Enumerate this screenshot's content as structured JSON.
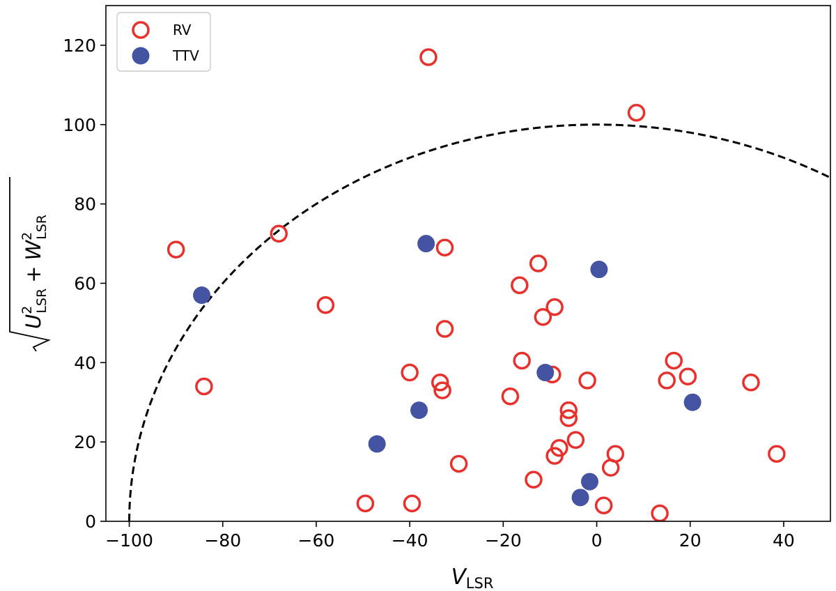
{
  "chart_data": {
    "type": "scatter",
    "xlabel_main": "V",
    "xlabel_sub": "LSR",
    "ylabel": {
      "u": "U",
      "w": "W",
      "exp": "2",
      "sub": "LSR",
      "plus": "+"
    },
    "xlim": [
      -105,
      50
    ],
    "ylim": [
      0,
      130
    ],
    "xticks": [
      -100,
      -80,
      -60,
      -40,
      -20,
      0,
      20,
      40
    ],
    "xtick_labels": [
      "−100",
      "−80",
      "−60",
      "−40",
      "−20",
      "0",
      "20",
      "40"
    ],
    "yticks": [
      0,
      20,
      40,
      60,
      80,
      100,
      120
    ],
    "ytick_labels": [
      "0",
      "20",
      "40",
      "60",
      "80",
      "100",
      "120"
    ],
    "grid": false,
    "legend_position": "top-left",
    "reference_curve": {
      "shape": "circle",
      "center": [
        0,
        0
      ],
      "radius": 100,
      "style": "dashed",
      "color": "#000000"
    },
    "series": [
      {
        "name": "RV",
        "marker": "open-circle",
        "color": "#e8302c",
        "points": [
          [
            -36,
            117
          ],
          [
            8.5,
            103
          ],
          [
            -90,
            68.5
          ],
          [
            -68,
            72.5
          ],
          [
            -32.5,
            69
          ],
          [
            -12.5,
            65
          ],
          [
            -16.5,
            59.5
          ],
          [
            -58,
            54.5
          ],
          [
            -9,
            54
          ],
          [
            -11.5,
            51.5
          ],
          [
            -32.5,
            48.5
          ],
          [
            -16,
            40.5
          ],
          [
            -40,
            37.5
          ],
          [
            -84,
            34
          ],
          [
            -9.5,
            37
          ],
          [
            -33.5,
            35
          ],
          [
            -33,
            33
          ],
          [
            -2,
            35.5
          ],
          [
            -18.5,
            31.5
          ],
          [
            16.5,
            40.5
          ],
          [
            15,
            35.5
          ],
          [
            19.5,
            36.5
          ],
          [
            33,
            35
          ],
          [
            -6,
            28
          ],
          [
            -6,
            26
          ],
          [
            -4.5,
            20.5
          ],
          [
            -8,
            18.5
          ],
          [
            -9,
            16.5
          ],
          [
            4,
            17
          ],
          [
            38.5,
            17
          ],
          [
            -29.5,
            14.5
          ],
          [
            3,
            13.5
          ],
          [
            -13.5,
            10.5
          ],
          [
            -49.5,
            4.5
          ],
          [
            -39.5,
            4.5
          ],
          [
            1.5,
            4
          ],
          [
            13.5,
            2
          ]
        ]
      },
      {
        "name": "TTV",
        "marker": "filled-circle",
        "color": "#4453a2",
        "points": [
          [
            -36.5,
            70
          ],
          [
            0.5,
            63.5
          ],
          [
            -84.5,
            57
          ],
          [
            -11,
            37.5
          ],
          [
            20.5,
            30
          ],
          [
            -38,
            28
          ],
          [
            -47,
            19.5
          ],
          [
            -1.5,
            10
          ],
          [
            -3.5,
            6
          ]
        ]
      }
    ]
  }
}
